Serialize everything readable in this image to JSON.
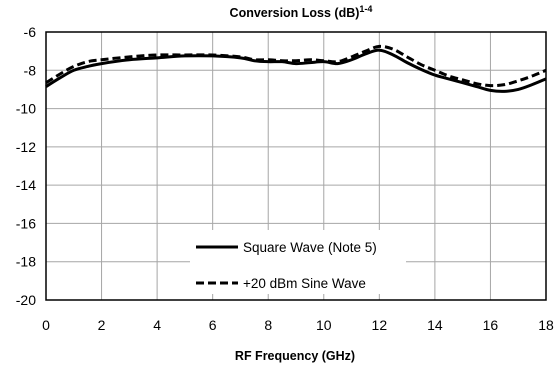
{
  "chart_data": {
    "type": "line",
    "title": "Conversion Loss (dB)",
    "title_superscript": "1-4",
    "xlabel": "RF Frequency (GHz)",
    "ylabel": "",
    "xlim": [
      0,
      18
    ],
    "ylim": [
      -20,
      -6
    ],
    "x_ticks": [
      "0",
      "2",
      "4",
      "6",
      "8",
      "10",
      "12",
      "14",
      "16",
      "18"
    ],
    "y_ticks": [
      "-6",
      "-8",
      "-10",
      "-12",
      "-14",
      "-16",
      "-18",
      "-20"
    ],
    "grid": true,
    "legend_position": "bottom-center",
    "series": [
      {
        "name": "Square Wave (Note 5)",
        "style": "solid",
        "color": "#000000",
        "x": [
          0,
          0.5,
          1,
          1.5,
          2,
          3,
          4,
          5,
          6,
          7,
          7.5,
          8,
          8.5,
          9,
          9.5,
          10,
          10.5,
          11,
          11.5,
          12,
          12.5,
          13,
          13.5,
          14,
          14.5,
          15,
          15.5,
          16,
          16.5,
          17,
          17.5,
          18
        ],
        "values": [
          -8.85,
          -8.4,
          -8.0,
          -7.8,
          -7.65,
          -7.45,
          -7.35,
          -7.25,
          -7.25,
          -7.35,
          -7.5,
          -7.55,
          -7.55,
          -7.65,
          -7.6,
          -7.55,
          -7.65,
          -7.45,
          -7.15,
          -6.95,
          -7.2,
          -7.6,
          -7.95,
          -8.25,
          -8.45,
          -8.65,
          -8.85,
          -9.05,
          -9.1,
          -9.0,
          -8.75,
          -8.45
        ]
      },
      {
        "name": "+20 dBm Sine Wave",
        "style": "dashed",
        "color": "#000000",
        "x": [
          0,
          0.5,
          1,
          1.5,
          2,
          3,
          4,
          5,
          6,
          7,
          7.5,
          8,
          8.5,
          9,
          9.5,
          10,
          10.5,
          11,
          11.5,
          12,
          12.5,
          13,
          13.5,
          14,
          14.5,
          15,
          15.5,
          16,
          16.5,
          17,
          17.5,
          18
        ],
        "values": [
          -8.65,
          -8.2,
          -7.8,
          -7.55,
          -7.45,
          -7.3,
          -7.2,
          -7.2,
          -7.2,
          -7.3,
          -7.45,
          -7.45,
          -7.5,
          -7.5,
          -7.45,
          -7.5,
          -7.55,
          -7.3,
          -7.0,
          -6.75,
          -6.9,
          -7.3,
          -7.7,
          -8.0,
          -8.3,
          -8.5,
          -8.7,
          -8.8,
          -8.75,
          -8.55,
          -8.3,
          -8.0
        ]
      }
    ]
  }
}
